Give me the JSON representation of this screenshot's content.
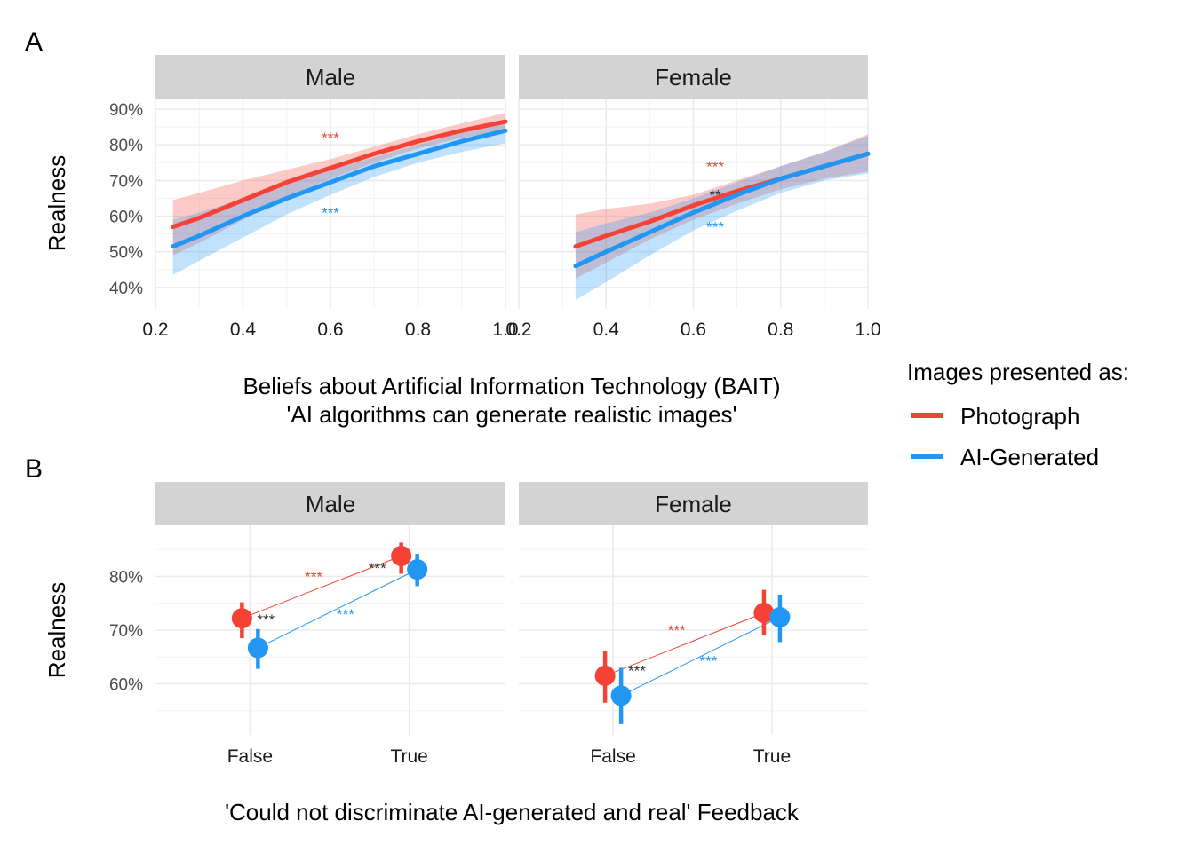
{
  "panel_labels": [
    "A",
    "B"
  ],
  "colors": {
    "Photograph": "#f44336",
    "AI-Generated": "#2196f3",
    "diff": "#333333"
  },
  "legend": {
    "title": "Images presented as:",
    "items": [
      {
        "label": "Photograph",
        "color": "#f44336"
      },
      {
        "label": "AI-Generated",
        "color": "#2196f3"
      }
    ]
  },
  "chart_data": [
    {
      "panel": "A",
      "type": "line",
      "xlabel_lines": [
        "Beliefs about Artificial Information Technology (BAIT)",
        "'AI algorithms can generate realistic images'"
      ],
      "ylabel": "Realness",
      "xlim": [
        0.2,
        1.0
      ],
      "xticks": [
        0.2,
        0.4,
        0.6,
        0.8,
        1.0
      ],
      "xtick_labels": [
        "0.2",
        "0.4",
        "0.6",
        "0.8",
        "1.0"
      ],
      "ylim": [
        34,
        93
      ],
      "yticks": [
        40,
        50,
        60,
        70,
        80,
        90
      ],
      "ytick_labels": [
        "40%",
        "50%",
        "60%",
        "70%",
        "80%",
        "90%"
      ],
      "facets": [
        {
          "name": "Male",
          "series": [
            {
              "name": "Photograph",
              "x": [
                0.24,
                0.3,
                0.4,
                0.5,
                0.6,
                0.7,
                0.8,
                0.9,
                1.0
              ],
              "y": [
                57,
                59.5,
                64.5,
                69.5,
                73.5,
                77.5,
                81,
                84,
                86.5
              ],
              "lower": [
                49,
                52.5,
                59,
                65.5,
                70.5,
                75,
                79,
                82,
                84
              ],
              "upper": [
                64.5,
                66.5,
                70,
                73,
                76,
                79.5,
                83,
                86,
                89
              ]
            },
            {
              "name": "AI-Generated",
              "x": [
                0.24,
                0.3,
                0.4,
                0.5,
                0.6,
                0.7,
                0.8,
                0.9,
                1.0
              ],
              "y": [
                51.5,
                54.5,
                60,
                65,
                69.5,
                74,
                77.5,
                81,
                84
              ],
              "lower": [
                43.5,
                47.5,
                54,
                60.5,
                66,
                71,
                75,
                78,
                80.5
              ],
              "upper": [
                59,
                61,
                65,
                69,
                73,
                76.5,
                80,
                83.5,
                86.5
              ]
            }
          ],
          "annotations": [
            {
              "text": "***",
              "x": 0.6,
              "y": 80.5,
              "color": "#f44336"
            },
            {
              "text": "***",
              "x": 0.6,
              "y": 59.5,
              "color": "#2196f3"
            }
          ]
        },
        {
          "name": "Female",
          "series": [
            {
              "name": "Photograph",
              "x": [
                0.33,
                0.4,
                0.5,
                0.6,
                0.7,
                0.8,
                0.9,
                1.0
              ],
              "y": [
                51.5,
                54.5,
                58.5,
                63,
                67,
                70.5,
                74,
                77.5
              ],
              "lower": [
                42.5,
                47,
                53.5,
                59,
                63.5,
                67.5,
                70.5,
                72.5
              ],
              "upper": [
                60.5,
                62,
                63.5,
                66,
                70,
                74,
                78,
                83
              ]
            },
            {
              "name": "AI-Generated",
              "x": [
                0.33,
                0.4,
                0.5,
                0.6,
                0.7,
                0.8,
                0.9,
                1.0
              ],
              "y": [
                46,
                50,
                55.5,
                61,
                66,
                70.5,
                74,
                77.5
              ],
              "lower": [
                36.5,
                41.5,
                49,
                56,
                61.5,
                66.5,
                70,
                72
              ],
              "upper": [
                55.5,
                58,
                61,
                65,
                69.5,
                74,
                78,
                82.5
              ]
            }
          ],
          "annotations": [
            {
              "text": "***",
              "x": 0.65,
              "y": 72.5,
              "color": "#f44336"
            },
            {
              "text": "**",
              "x": 0.65,
              "y": 64.5,
              "color": "#333333"
            },
            {
              "text": "***",
              "x": 0.65,
              "y": 55.5,
              "color": "#2196f3"
            }
          ]
        }
      ]
    },
    {
      "panel": "B",
      "type": "scatter",
      "xlabel": "'Could not discriminate AI-generated and real' Feedback",
      "ylabel": "Realness",
      "categories": [
        "False",
        "True"
      ],
      "ylim": [
        50.5,
        89.5
      ],
      "yticks": [
        60,
        70,
        80
      ],
      "ytick_labels": [
        "60%",
        "70%",
        "80%"
      ],
      "facets": [
        {
          "name": "Male",
          "series": [
            {
              "name": "Photograph",
              "values": [
                72.2,
                83.8
              ],
              "lower": [
                68.5,
                80.5
              ],
              "upper": [
                75.2,
                86.3
              ]
            },
            {
              "name": "AI-Generated",
              "values": [
                66.7,
                81.3
              ],
              "lower": [
                62.8,
                78.2
              ],
              "upper": [
                70.2,
                84.2
              ]
            }
          ],
          "annotations": [
            {
              "text": "***",
              "x": 0.4,
              "y": 79.0,
              "color": "#f44336"
            },
            {
              "text": "***",
              "x": 0.8,
              "y": 80.6,
              "color": "#333333"
            },
            {
              "text": "***",
              "x": 0.1,
              "y": 71.0,
              "color": "#333333"
            },
            {
              "text": "***",
              "x": 0.6,
              "y": 72.0,
              "color": "#2196f3"
            }
          ]
        },
        {
          "name": "Female",
          "series": [
            {
              "name": "Photograph",
              "values": [
                61.5,
                73.2
              ],
              "lower": [
                56.5,
                69.0
              ],
              "upper": [
                66.2,
                77.5
              ]
            },
            {
              "name": "AI-Generated",
              "values": [
                57.8,
                72.4
              ],
              "lower": [
                52.5,
                67.8
              ],
              "upper": [
                63.0,
                76.6
              ]
            }
          ],
          "annotations": [
            {
              "text": "***",
              "x": 0.4,
              "y": 69.0,
              "color": "#f44336"
            },
            {
              "text": "***",
              "x": 0.15,
              "y": 61.5,
              "color": "#333333"
            },
            {
              "text": "***",
              "x": 0.6,
              "y": 63.3,
              "color": "#2196f3"
            }
          ]
        }
      ]
    }
  ]
}
